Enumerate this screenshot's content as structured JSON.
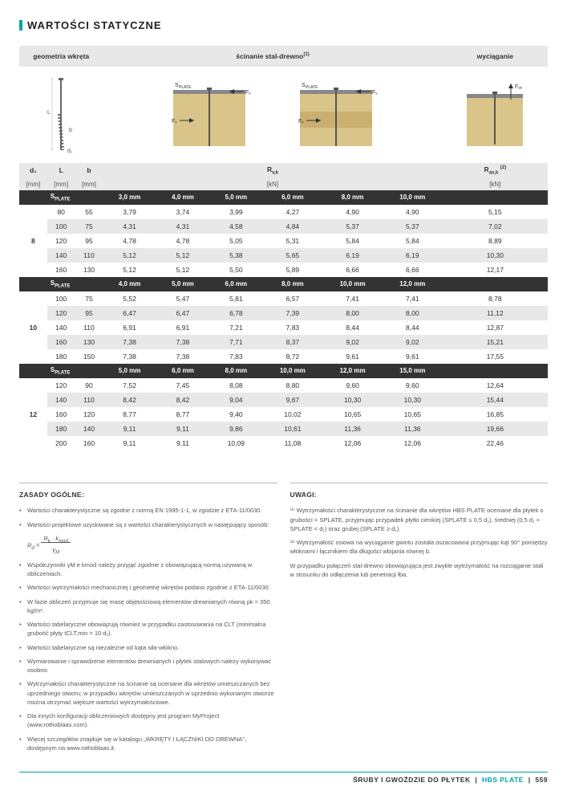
{
  "section_title": "WARTOŚCI STATYCZNE",
  "headers": {
    "geometry": "geometria wkręta",
    "shear": "ścinanie stal-drewno",
    "shear_sup": "(1)",
    "axial": "wyciąganie",
    "d1": "d₁",
    "L": "L",
    "b": "b",
    "Rvk": "R",
    "Rvk_sub": "v,k",
    "Raxk": "R",
    "Raxk_sub": "ax,k",
    "Raxk_sup": "(2)",
    "unit_mm": "[mm]",
    "unit_kN": "[kN]"
  },
  "diagram_labels": {
    "splate": "S",
    "splate_sub": "PLATE",
    "Fv": "F",
    "Fv_sub": "V",
    "Fax": "F",
    "Fax_sub": "ax"
  },
  "splate_label": "S",
  "splate_label_sub": "PLATE",
  "groups": [
    {
      "d1": "8",
      "splate_cols": [
        "3,0 mm",
        "4,0 mm",
        "5,0 mm",
        "6,0 mm",
        "8,0 mm",
        "10,0 mm"
      ],
      "rows": [
        {
          "L": "80",
          "b": "55",
          "v": [
            "3,79",
            "3,74",
            "3,99",
            "4,27",
            "4,90",
            "4,90"
          ],
          "rax": "5,15"
        },
        {
          "L": "100",
          "b": "75",
          "v": [
            "4,31",
            "4,31",
            "4,58",
            "4,84",
            "5,37",
            "5,37"
          ],
          "rax": "7,02"
        },
        {
          "L": "120",
          "b": "95",
          "v": [
            "4,78",
            "4,78",
            "5,05",
            "5,31",
            "5,84",
            "5,84"
          ],
          "rax": "8,89"
        },
        {
          "L": "140",
          "b": "110",
          "v": [
            "5,12",
            "5,12",
            "5,38",
            "5,65",
            "6,19",
            "6,19"
          ],
          "rax": "10,30"
        },
        {
          "L": "160",
          "b": "130",
          "v": [
            "5,12",
            "5,12",
            "5,50",
            "5,89",
            "6,66",
            "6,66"
          ],
          "rax": "12,17"
        }
      ]
    },
    {
      "d1": "10",
      "splate_cols": [
        "4,0 mm",
        "5,0 mm",
        "6,0 mm",
        "8,0 mm",
        "10,0 mm",
        "12,0 mm"
      ],
      "rows": [
        {
          "L": "100",
          "b": "75",
          "v": [
            "5,52",
            "5,47",
            "5,81",
            "6,57",
            "7,41",
            "7,41"
          ],
          "rax": "8,78"
        },
        {
          "L": "120",
          "b": "95",
          "v": [
            "6,47",
            "6,47",
            "6,78",
            "7,39",
            "8,00",
            "8,00"
          ],
          "rax": "11,12"
        },
        {
          "L": "140",
          "b": "110",
          "v": [
            "6,91",
            "6,91",
            "7,21",
            "7,83",
            "8,44",
            "8,44"
          ],
          "rax": "12,87"
        },
        {
          "L": "160",
          "b": "130",
          "v": [
            "7,38",
            "7,38",
            "7,71",
            "8,37",
            "9,02",
            "9,02"
          ],
          "rax": "15,21"
        },
        {
          "L": "180",
          "b": "150",
          "v": [
            "7,38",
            "7,38",
            "7,83",
            "8,72",
            "9,61",
            "9,61"
          ],
          "rax": "17,55"
        }
      ]
    },
    {
      "d1": "12",
      "splate_cols": [
        "5,0 mm",
        "6,0 mm",
        "8,0 mm",
        "10,0 mm",
        "12,0 mm",
        "15,0 mm"
      ],
      "rows": [
        {
          "L": "120",
          "b": "90",
          "v": [
            "7,52",
            "7,45",
            "8,08",
            "8,80",
            "9,60",
            "9,60"
          ],
          "rax": "12,64"
        },
        {
          "L": "140",
          "b": "110",
          "v": [
            "8,42",
            "8,42",
            "9,04",
            "9,67",
            "10,30",
            "10,30"
          ],
          "rax": "15,44"
        },
        {
          "L": "160",
          "b": "120",
          "v": [
            "8,77",
            "8,77",
            "9,40",
            "10,02",
            "10,65",
            "10,65"
          ],
          "rax": "16,85"
        },
        {
          "L": "180",
          "b": "140",
          "v": [
            "9,11",
            "9,11",
            "9,86",
            "10,61",
            "11,36",
            "11,36"
          ],
          "rax": "19,66"
        },
        {
          "L": "200",
          "b": "160",
          "v": [
            "9,11",
            "9,11",
            "10,09",
            "11,08",
            "12,06",
            "12,06"
          ],
          "rax": "22,46"
        }
      ]
    }
  ],
  "notes": {
    "left_heading": "ZASADY OGÓLNE:",
    "right_heading": "UWAGI:",
    "left": [
      "Wartości charakterystyczne są zgodne z normą EN 1995-1-1, w zgodzie z ETA-11/0030.",
      "Wartości projektowe uzyskiwane są z wartości charakterystycznych w następujący sposób:",
      "Współczynniki γM e kmod należy przyjąć zgodnie z obowiązującą normą używaną w obliczeniach.",
      "Wartości wytrzymałości mechanicznej i geometrię wkrętów podano zgodnie z ETA-11/0030.",
      "W fazie obliczeń przyjmuje się masę objętościową elementów drewnianych równą ρk = 350 kg/m³.",
      "Wartości tabelaryczne obowiązują również w przypadku zastosowania na CLT (minimalna grubość płyty tCLT,min = 10 d₁).",
      "Wartości tabelaryczne są niezależne od kąta siła-włókno.",
      "Wymiarowanie i sprawdzenie elementów drewnianych i płytek stalowych należy wykonywać osobno.",
      "Wytrzymałości charakterystyczne na ścinanie są oceniane dla wkrętów umieszczanych bez uprzedniego otworu; w przypadku wkrętów umieszczanych w uprzednio wykonanym otworze można otrzymać większe wartości wytrzymałościowe.",
      "Dla innych konfiguracji obliczeniowych dostępny jest program MyProject (www.rothoblaas.com).",
      "Więcej szczegółów znajduje się w katalogu „WKRĘTY I ŁĄCZNIKI DO DREWNA\", dostępnym na www.rothoblaas.it."
    ],
    "formula": "Rd = (Rk · kmod) / γM",
    "right": [
      "⁽¹⁾ Wytrzymałości charakterystyczne na ścinanie dla wkrętów HBS PLATE oceniane dla płytek o grubości = SPLATE, przyjmując przypadek płytki cienkiej (SPLATE ≤ 0,5 d₁), średniej (0,5 d₁ < SPLATE < d₁) oraz grubej (SPLATE ≥ d₁).",
      "⁽²⁾ Wytrzymałość osiowa na wyciąganie gwintu została oszacowana przyjmując kąt 90° pomiędzy włóknami i łącznikiem dla długości wbijania równej b.",
      "W przypadku połączeń stal-drewno obowiązująca jest zwykle wytrzymałość na rozciąganie stali w stosunku do odłączenia lub penetracji łba."
    ]
  },
  "footer": {
    "left": "ŚRUBY I GWOŹDZIE DO PŁYTEK",
    "mid": "HBS PLATE",
    "page": "559"
  }
}
